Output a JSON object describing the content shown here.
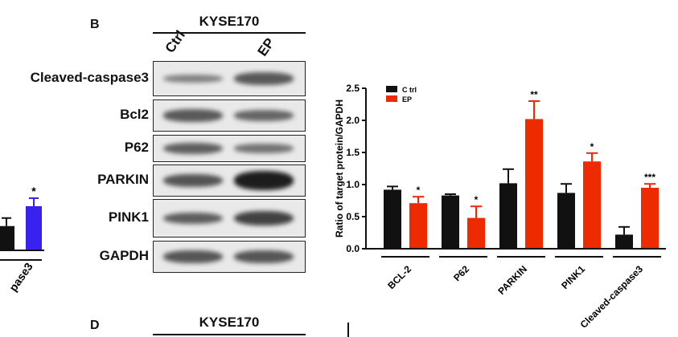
{
  "panel_b": {
    "letter": "B",
    "cell_line": "KYSE170",
    "lanes": [
      "Ctrl",
      "EP"
    ],
    "blots": [
      {
        "label": "Cleaved-caspase3",
        "ctrl": 0.22,
        "ep": 0.95
      },
      {
        "label": "Bcl2",
        "ctrl": 0.92,
        "ep": 0.71
      },
      {
        "label": "P62",
        "ctrl": 0.83,
        "ep": 0.48
      },
      {
        "label": "PARKIN",
        "ctrl": 1.02,
        "ep": 2.02
      },
      {
        "label": "PINK1",
        "ctrl": 0.87,
        "ep": 1.36
      },
      {
        "label": "GAPDH",
        "ctrl": 1.0,
        "ep": 1.0
      }
    ]
  },
  "panel_d": {
    "letter": "D",
    "cell_line": "KYSE170"
  },
  "left_partial": {
    "tick_label": "pase3",
    "star": "*",
    "bars": [
      {
        "value": 0.55,
        "color": "#111111"
      },
      {
        "value": 1.0,
        "color": "#3a22ee"
      }
    ]
  },
  "chart_data": {
    "type": "bar",
    "ylabel": "Ratio of target protein/GAPDH",
    "ylim": [
      0,
      2.5
    ],
    "yticks": [
      "0.0",
      "0.5",
      "1.0",
      "1.5",
      "2.0",
      "2.5"
    ],
    "categories": [
      "BCL-2",
      "P62",
      "PARKIN",
      "PINK1",
      "Cleaved-caspase3"
    ],
    "series": [
      {
        "name": "C trl",
        "color": "#111111",
        "values": [
          0.92,
          0.83,
          1.02,
          0.87,
          0.22
        ],
        "errors": [
          0.05,
          0.02,
          0.22,
          0.14,
          0.12
        ]
      },
      {
        "name": "EP",
        "color": "#ee2a00",
        "values": [
          0.71,
          0.48,
          2.02,
          1.36,
          0.95
        ],
        "errors": [
          0.1,
          0.18,
          0.28,
          0.13,
          0.06
        ]
      }
    ],
    "significance": [
      "*",
      "*",
      "**",
      "*",
      "***"
    ],
    "legend": "top-left"
  }
}
